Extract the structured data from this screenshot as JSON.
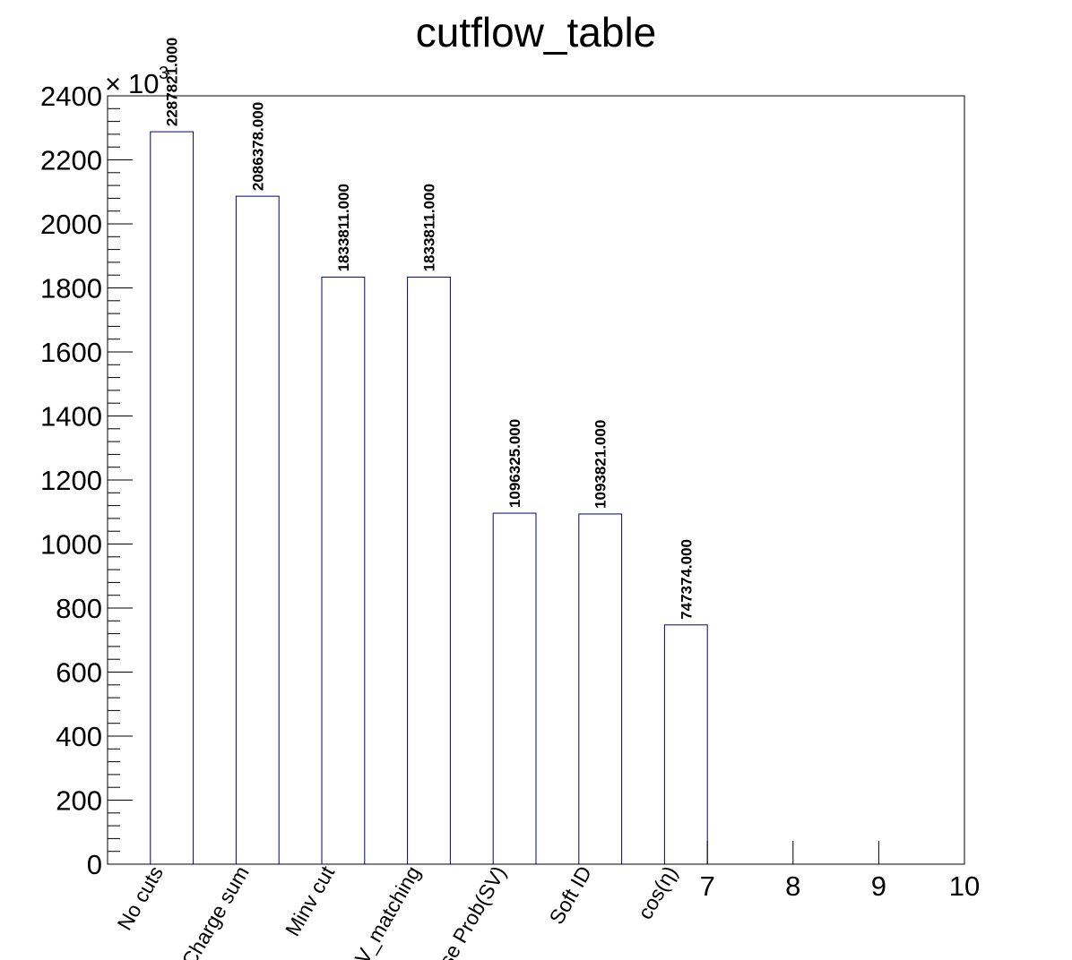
{
  "chart_data": {
    "type": "bar",
    "title": "cutflow_table",
    "xlabel": "",
    "ylabel": "",
    "y_multiplier": {
      "base": "10",
      "exponent": "3"
    },
    "ylim": [
      0,
      2400
    ],
    "y_ticks": [
      "0",
      "200",
      "400",
      "600",
      "800",
      "1000",
      "1200",
      "1400",
      "1600",
      "1800",
      "2000",
      "2200",
      "2400"
    ],
    "xlim": [
      0,
      10
    ],
    "x_numeric_ticks": [
      "7",
      "8",
      "9",
      "10"
    ],
    "categories": [
      "No cuts",
      "Charge sum",
      "Minv cut",
      "SV_matching",
      "Loose Prob(SV)",
      "Soft ID",
      "cos(η)"
    ],
    "values": [
      2287821,
      2086378,
      1833811,
      1833811,
      1096325,
      1093821,
      747374
    ],
    "data_labels": [
      "2287821.000",
      "2086378.000",
      "1833811.000",
      "1833811.000",
      "1096325.000",
      "1093821.000",
      "747374.000"
    ],
    "bar_outline_color": "#000080",
    "grid": false,
    "legend": "none"
  }
}
